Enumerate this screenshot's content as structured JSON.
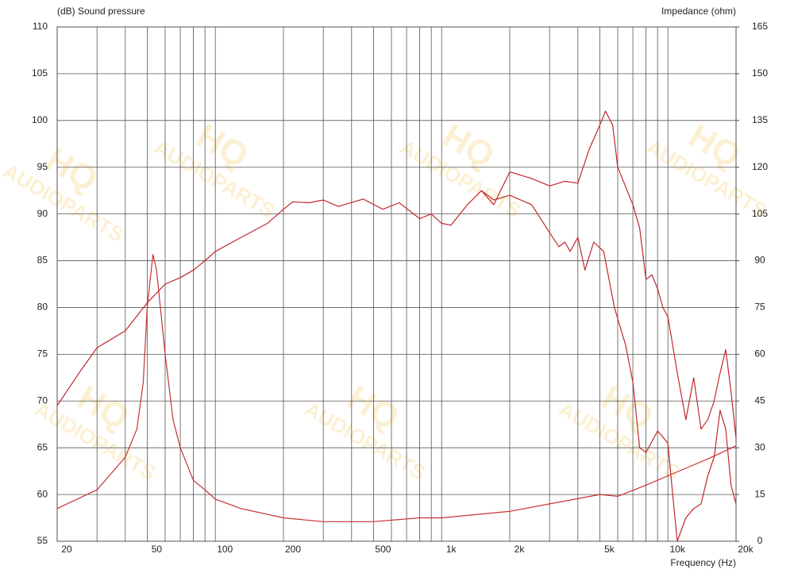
{
  "chart_data": {
    "type": "line",
    "y_label": "(dB)  Sound pressure",
    "y2_label": "Impedance  (ohm)",
    "x_label": "Frequency  (Hz)",
    "watermark": [
      "HQ",
      "AUDIOPARTS"
    ],
    "xscale": "log",
    "grid": true,
    "xlim": [
      20,
      20000
    ],
    "xticks": [
      20,
      50,
      100,
      200,
      500,
      {
        "value": 1000,
        "label": "1k"
      },
      {
        "value": 2000,
        "label": "2k"
      },
      {
        "value": 5000,
        "label": "5k"
      },
      {
        "value": 10000,
        "label": "10k"
      },
      {
        "value": 20000,
        "label": "20k"
      }
    ],
    "xgrid": [
      30,
      40,
      60,
      70,
      80,
      90,
      300,
      400,
      600,
      700,
      800,
      900,
      3000,
      4000,
      6000,
      7000,
      8000,
      9000
    ],
    "ylim": [
      55,
      110
    ],
    "yticks": [
      55,
      60,
      65,
      70,
      75,
      80,
      85,
      90,
      95,
      100,
      105,
      110
    ],
    "y2lim": [
      0,
      165
    ],
    "y2ticks": [
      0,
      15,
      30,
      45,
      60,
      75,
      90,
      105,
      120,
      135,
      150,
      165
    ],
    "series": [
      {
        "color": "#c0282d",
        "x": [
          20,
          25,
          30,
          40,
          50,
          60,
          70,
          80,
          90,
          100,
          130,
          170,
          200,
          220,
          260,
          300,
          350,
          450,
          550,
          650,
          800,
          900,
          1000,
          1100,
          1300,
          1500,
          1700,
          2000,
          2500,
          3000,
          3500,
          4000,
          4500,
          5000,
          5300,
          5700,
          6000,
          7000,
          7500,
          8000,
          8500,
          9000,
          9500,
          10000,
          11000,
          12000,
          13000,
          14000,
          15000,
          16000,
          17000,
          18000,
          19000,
          20000
        ],
        "values": [
          69.5,
          73,
          75.7,
          77.5,
          80.5,
          82.5,
          83.2,
          84,
          85,
          86,
          87.5,
          89,
          90.5,
          91.3,
          91.2,
          91.5,
          90.8,
          91.6,
          90.5,
          91.2,
          89.5,
          90,
          89,
          88.8,
          91,
          92.5,
          91,
          94.5,
          93.8,
          93,
          93.5,
          93.3,
          97,
          99.5,
          101,
          99.5,
          95,
          91,
          88.5,
          83,
          83.5,
          82,
          80,
          79,
          73,
          68,
          72.5,
          67,
          68,
          70,
          73,
          75.5,
          71,
          66
        ]
      },
      {
        "color": "#c0282d",
        "x": [
          1500,
          1700,
          2000,
          2500,
          3000,
          3300,
          3500,
          3700,
          4000,
          4300,
          4700,
          5200,
          5800,
          6500,
          7000,
          7500,
          8000,
          9000,
          10000,
          10500,
          11000,
          12000,
          13000,
          14000,
          15000,
          16000,
          17000,
          18000,
          19000,
          20000
        ],
        "values": [
          92.5,
          91.5,
          92,
          91,
          88,
          86.5,
          87,
          86,
          87.5,
          84,
          87,
          86,
          80,
          76,
          72,
          65,
          64.5,
          66.8,
          65.5,
          60,
          55,
          57.5,
          58.5,
          59,
          62,
          64,
          69,
          67,
          61,
          59
        ]
      },
      {
        "color": "#c83232",
        "axis": "y2",
        "x": [
          20,
          30,
          40,
          45,
          48,
          50,
          53,
          55,
          60,
          65,
          70,
          80,
          90,
          100,
          130,
          200,
          300,
          500,
          800,
          1000,
          2000,
          3000,
          5000,
          6000,
          8000,
          10000,
          15000,
          20000
        ],
        "values": [
          10.5,
          16.5,
          27,
          36,
          51,
          75,
          92,
          87,
          60,
          39,
          30,
          19.5,
          16.5,
          13.5,
          10.5,
          7.5,
          6.3,
          6.3,
          7.5,
          7.5,
          9.6,
          12,
          15,
          14.4,
          18,
          21,
          26.4,
          30.6
        ]
      }
    ]
  }
}
